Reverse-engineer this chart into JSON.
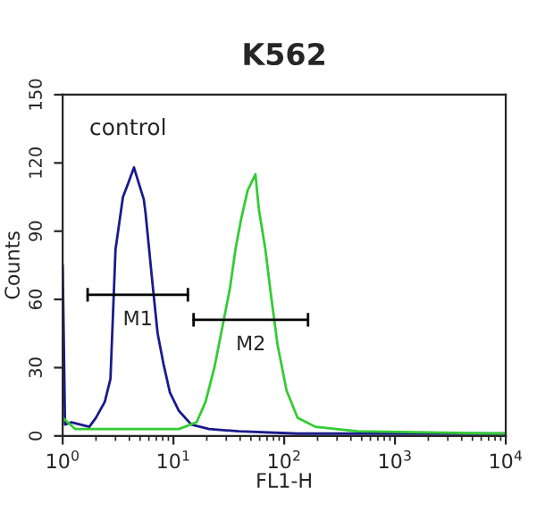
{
  "chart_data": {
    "type": "line",
    "title": "K562",
    "xlabel": "FL1-H",
    "ylabel": "Counts",
    "log": "x",
    "grid": false,
    "xlim": [
      1,
      10000
    ],
    "xticks": [
      {
        "value": 1,
        "label": "10$^{0}$"
      },
      {
        "value": 10,
        "label": "10$^{1}$"
      },
      {
        "value": 100,
        "label": "10$^{2}$"
      },
      {
        "value": 1000,
        "label": "10$^{3}$"
      },
      {
        "value": 10000,
        "label": "10$^{4}$"
      }
    ],
    "ylim": [
      0,
      150
    ],
    "yticks": [
      0,
      30,
      60,
      90,
      120,
      150
    ],
    "series": [
      {
        "color": "#1a1a8c",
        "x": [
          1,
          1.05,
          1.2,
          1.74,
          2.0,
          2.4,
          2.7,
          3.0,
          3.5,
          3.9,
          4.4,
          4.8,
          5.4,
          5.6,
          6.5,
          7.2,
          8.1,
          9.3,
          11.2,
          14.5,
          21,
          39,
          132,
          10000
        ],
        "values": [
          75,
          5,
          6,
          4,
          8,
          15,
          25,
          82,
          105,
          111,
          118,
          112,
          104,
          98,
          66,
          45,
          32,
          19,
          11,
          5,
          3,
          2,
          1,
          1
        ]
      },
      {
        "color": "#33cc33",
        "x": [
          1,
          1.3,
          3.2,
          11.2,
          16.2,
          19.5,
          23.4,
          28.2,
          32.4,
          36.3,
          40.7,
          46.8,
          55,
          58.9,
          67.6,
          75.9,
          87.1,
          105,
          132,
          191,
          457,
          10000
        ],
        "values": [
          8,
          3,
          3,
          3,
          6,
          15,
          30,
          50,
          65,
          82,
          95,
          108,
          115,
          100,
          82,
          62,
          40,
          20,
          8,
          4,
          2,
          1
        ]
      },
      {
        "color": "#000000",
        "x": [
          1.68,
          13.5
        ],
        "values": [
          62,
          62
        ],
        "errors": [
          3,
          3
        ]
      },
      {
        "color": "#000000",
        "x": [
          15.2,
          164
        ],
        "values": [
          51,
          51
        ],
        "errors": [
          3,
          3
        ]
      }
    ],
    "annotations": [
      "control",
      "M1",
      "M2"
    ]
  }
}
